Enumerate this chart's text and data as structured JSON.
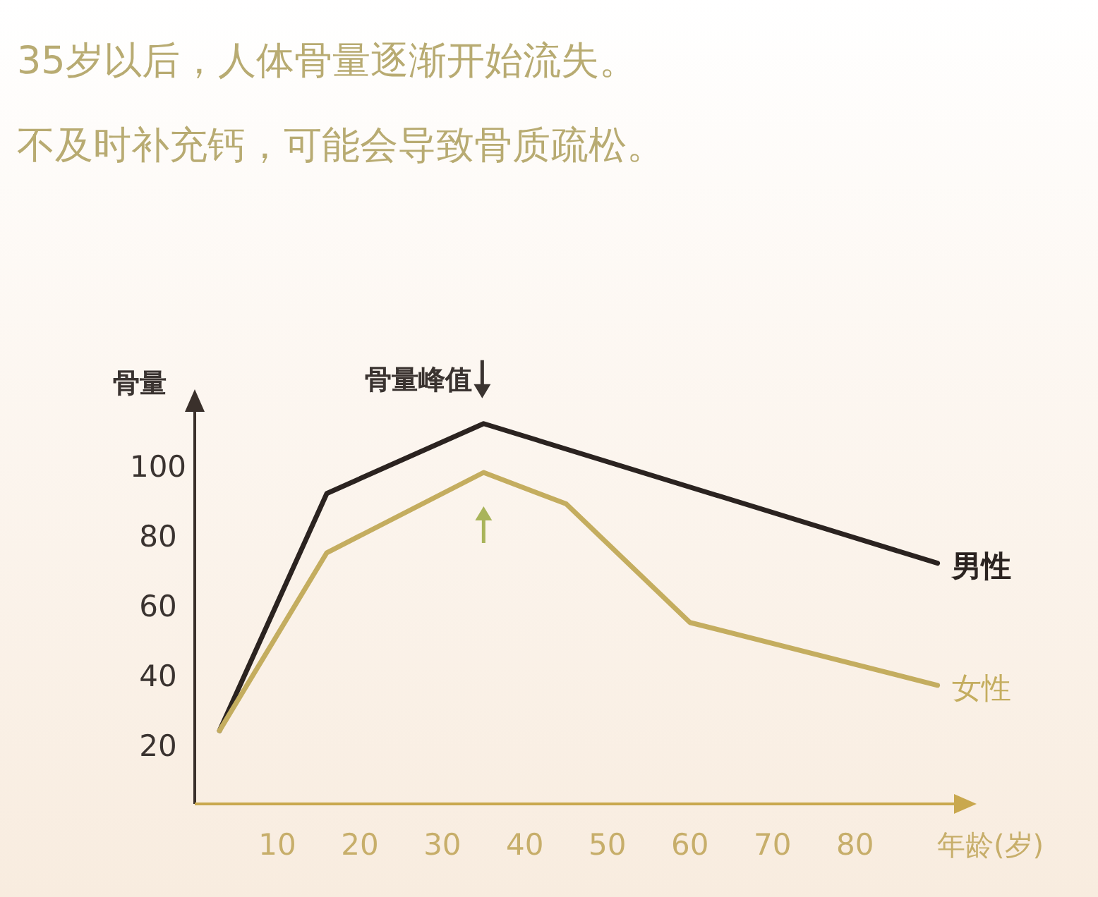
{
  "chart_data": {
    "type": "line",
    "title": "35岁以后，人体骨量逐渐开始流失。",
    "subtitle": "不及时补充钙，可能会导致骨质疏松。",
    "xlabel": "年龄(岁)",
    "ylabel": "骨量",
    "series": [
      {
        "name": "男性",
        "color": "#2b2320",
        "x": [
          3,
          16,
          35,
          90
        ],
        "values": [
          24,
          92,
          112,
          72
        ]
      },
      {
        "name": "女性",
        "color": "#c4ad5f",
        "x": [
          3,
          16,
          35,
          45,
          60,
          90
        ],
        "values": [
          24,
          75,
          98,
          89,
          55,
          37
        ]
      }
    ],
    "xlim": [
      0,
      92
    ],
    "ylim": [
      3,
      117
    ],
    "xticks": [
      10,
      20,
      30,
      40,
      50,
      60,
      70,
      80
    ],
    "yticks": [
      20,
      40,
      60,
      80,
      100
    ],
    "annotations": [
      {
        "text": "骨量峰值",
        "x": 35,
        "y": 112
      }
    ],
    "grid": false,
    "marker": "none",
    "line_style": "solid"
  }
}
